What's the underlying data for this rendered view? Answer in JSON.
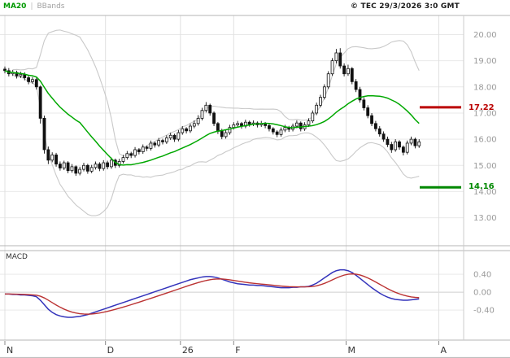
{
  "header": {
    "legend_ma20": "MA20",
    "legend_separator": "|",
    "legend_bbands": "BBands",
    "copyright": "© TEC 29/3/2026 3:0 GMT"
  },
  "indicator_panel": {
    "label": "MACD"
  },
  "levels": {
    "resistance": {
      "value": 17.22,
      "label": "17.22",
      "color": "#bb0000"
    },
    "support": {
      "value": 14.16,
      "label": "14.16",
      "color": "#008800"
    }
  },
  "colors": {
    "ma20": "#00a800",
    "bollinger": "#c9c9c9",
    "candle": "#111111",
    "macd_line": "#3333bb",
    "signal_line": "#bb3333",
    "axis_text": "#999999",
    "month_text": "#333333",
    "grid": "#e9e9e9",
    "border": "#b5b5b5"
  },
  "chart_data": {
    "type": "candlestick",
    "title": "",
    "legend": [
      "MA20",
      "BBands"
    ],
    "price_panel": {
      "ylim": [
        11.93,
        20.73
      ],
      "yticks": [
        20,
        19,
        18,
        17,
        16,
        15,
        14,
        13
      ],
      "overlays": [
        "MA20 = SMA(20) of closes",
        "Bollinger Bands = SMA20 ± 2·stdev(20)"
      ],
      "levels": [
        17.22,
        14.16
      ],
      "candles": [
        [
          18.68,
          18.78,
          18.52,
          18.62
        ],
        [
          18.62,
          18.72,
          18.4,
          18.5
        ],
        [
          18.5,
          18.65,
          18.42,
          18.55
        ],
        [
          18.55,
          18.62,
          18.32,
          18.42
        ],
        [
          18.42,
          18.58,
          18.34,
          18.48
        ],
        [
          18.48,
          18.56,
          18.25,
          18.35
        ],
        [
          18.35,
          18.45,
          18.1,
          18.2
        ],
        [
          18.2,
          18.38,
          18.12,
          18.28
        ],
        [
          18.28,
          18.35,
          17.9,
          18.0
        ],
        [
          18.0,
          18.05,
          16.6,
          16.8
        ],
        [
          16.8,
          16.9,
          15.45,
          15.6
        ],
        [
          15.6,
          15.72,
          15.05,
          15.2
        ],
        [
          15.2,
          15.5,
          15.12,
          15.4
        ],
        [
          15.4,
          15.48,
          14.95,
          15.05
        ],
        [
          15.05,
          15.15,
          14.8,
          14.9
        ],
        [
          14.9,
          15.18,
          14.82,
          15.1
        ],
        [
          15.1,
          15.16,
          14.7,
          14.8
        ],
        [
          14.8,
          15.05,
          14.72,
          14.95
        ],
        [
          14.95,
          15.0,
          14.6,
          14.7
        ],
        [
          14.7,
          14.95,
          14.62,
          14.85
        ],
        [
          14.85,
          15.1,
          14.77,
          15.0
        ],
        [
          15.0,
          15.06,
          14.68,
          14.78
        ],
        [
          14.78,
          15.02,
          14.7,
          14.92
        ],
        [
          14.92,
          15.15,
          14.84,
          15.05
        ],
        [
          15.05,
          15.12,
          14.78,
          14.88
        ],
        [
          14.88,
          15.2,
          14.8,
          15.1
        ],
        [
          15.1,
          15.18,
          14.85,
          14.95
        ],
        [
          14.95,
          15.3,
          14.87,
          15.2
        ],
        [
          15.2,
          15.26,
          14.9,
          15.0
        ],
        [
          15.0,
          15.25,
          14.92,
          15.15
        ],
        [
          15.15,
          15.4,
          15.07,
          15.3
        ],
        [
          15.3,
          15.55,
          15.22,
          15.45
        ],
        [
          15.45,
          15.52,
          15.28,
          15.38
        ],
        [
          15.38,
          15.7,
          15.3,
          15.6
        ],
        [
          15.6,
          15.66,
          15.42,
          15.52
        ],
        [
          15.52,
          15.8,
          15.44,
          15.7
        ],
        [
          15.7,
          15.76,
          15.55,
          15.65
        ],
        [
          15.65,
          15.95,
          15.57,
          15.85
        ],
        [
          15.85,
          15.91,
          15.68,
          15.78
        ],
        [
          15.78,
          16.05,
          15.7,
          15.95
        ],
        [
          15.95,
          16.02,
          15.8,
          15.9
        ],
        [
          15.9,
          16.15,
          15.82,
          16.05
        ],
        [
          16.05,
          16.25,
          15.97,
          16.15
        ],
        [
          16.15,
          16.21,
          15.9,
          16.0
        ],
        [
          16.0,
          16.35,
          15.92,
          16.25
        ],
        [
          16.25,
          16.5,
          16.17,
          16.4
        ],
        [
          16.4,
          16.46,
          16.22,
          16.32
        ],
        [
          16.32,
          16.6,
          16.24,
          16.5
        ],
        [
          16.5,
          16.72,
          16.42,
          16.6
        ],
        [
          16.6,
          16.92,
          16.52,
          16.8
        ],
        [
          16.8,
          17.2,
          16.72,
          17.1
        ],
        [
          17.1,
          17.42,
          17.02,
          17.3
        ],
        [
          17.3,
          17.36,
          16.9,
          17.0
        ],
        [
          17.0,
          17.06,
          16.5,
          16.6
        ],
        [
          16.6,
          16.66,
          16.2,
          16.3
        ],
        [
          16.3,
          16.4,
          16.0,
          16.1
        ],
        [
          16.1,
          16.35,
          16.02,
          16.25
        ],
        [
          16.25,
          16.55,
          16.17,
          16.45
        ],
        [
          16.45,
          16.65,
          16.37,
          16.55
        ],
        [
          16.55,
          16.7,
          16.47,
          16.6
        ],
        [
          16.6,
          16.66,
          16.4,
          16.5
        ],
        [
          16.5,
          16.75,
          16.42,
          16.65
        ],
        [
          16.65,
          16.71,
          16.48,
          16.58
        ],
        [
          16.58,
          16.72,
          16.5,
          16.62
        ],
        [
          16.62,
          16.68,
          16.45,
          16.55
        ],
        [
          16.55,
          16.7,
          16.47,
          16.6
        ],
        [
          16.6,
          16.66,
          16.42,
          16.52
        ],
        [
          16.52,
          16.58,
          16.3,
          16.4
        ],
        [
          16.4,
          16.46,
          16.18,
          16.28
        ],
        [
          16.28,
          16.34,
          16.08,
          16.18
        ],
        [
          16.18,
          16.45,
          16.1,
          16.35
        ],
        [
          16.35,
          16.55,
          16.27,
          16.45
        ],
        [
          16.45,
          16.51,
          16.28,
          16.38
        ],
        [
          16.38,
          16.6,
          16.3,
          16.5
        ],
        [
          16.5,
          16.72,
          16.42,
          16.62
        ],
        [
          16.62,
          16.68,
          16.3,
          16.4
        ],
        [
          16.4,
          16.65,
          16.32,
          16.55
        ],
        [
          16.55,
          16.8,
          16.47,
          16.7
        ],
        [
          16.7,
          17.1,
          16.62,
          17.0
        ],
        [
          17.0,
          17.4,
          16.92,
          17.3
        ],
        [
          17.3,
          17.7,
          17.22,
          17.6
        ],
        [
          17.6,
          18.1,
          17.52,
          18.0
        ],
        [
          18.0,
          18.6,
          17.92,
          18.5
        ],
        [
          18.5,
          19.1,
          18.42,
          19.0
        ],
        [
          19.0,
          19.45,
          18.9,
          19.3
        ],
        [
          19.3,
          19.48,
          18.7,
          18.8
        ],
        [
          18.8,
          18.9,
          18.4,
          18.5
        ],
        [
          18.5,
          18.85,
          18.42,
          18.7
        ],
        [
          18.7,
          18.76,
          18.1,
          18.2
        ],
        [
          18.2,
          18.3,
          17.8,
          17.9
        ],
        [
          17.9,
          18.0,
          17.4,
          17.5
        ],
        [
          17.5,
          17.6,
          17.1,
          17.2
        ],
        [
          17.2,
          17.3,
          16.8,
          16.9
        ],
        [
          16.9,
          17.0,
          16.5,
          16.6
        ],
        [
          16.6,
          16.7,
          16.3,
          16.4
        ],
        [
          16.4,
          16.5,
          16.1,
          16.2
        ],
        [
          16.2,
          16.3,
          15.9,
          16.0
        ],
        [
          16.0,
          16.1,
          15.7,
          15.8
        ],
        [
          15.8,
          15.9,
          15.48,
          15.6
        ],
        [
          15.6,
          16.0,
          15.52,
          15.9
        ],
        [
          15.9,
          15.96,
          15.6,
          15.7
        ],
        [
          15.7,
          15.76,
          15.38,
          15.5
        ],
        [
          15.5,
          15.95,
          15.42,
          15.85
        ],
        [
          15.85,
          16.1,
          15.77,
          16.0
        ],
        [
          16.0,
          16.06,
          15.65,
          15.75
        ],
        [
          15.75,
          16.0,
          15.67,
          15.9
        ]
      ]
    },
    "macd_panel": {
      "ylim": [
        -1.07,
        0.93
      ],
      "yticks": [
        0.4,
        0.0,
        -0.4
      ],
      "signal_derivation": "EMA9 of macd",
      "macd": [
        -0.04,
        -0.04,
        -0.05,
        -0.05,
        -0.06,
        -0.06,
        -0.07,
        -0.08,
        -0.1,
        -0.18,
        -0.28,
        -0.38,
        -0.45,
        -0.5,
        -0.53,
        -0.55,
        -0.56,
        -0.56,
        -0.55,
        -0.54,
        -0.52,
        -0.5,
        -0.47,
        -0.44,
        -0.41,
        -0.38,
        -0.35,
        -0.32,
        -0.29,
        -0.26,
        -0.23,
        -0.2,
        -0.17,
        -0.14,
        -0.11,
        -0.08,
        -0.05,
        -0.02,
        0.01,
        0.04,
        0.07,
        0.1,
        0.13,
        0.16,
        0.19,
        0.22,
        0.25,
        0.28,
        0.3,
        0.32,
        0.34,
        0.35,
        0.35,
        0.34,
        0.32,
        0.29,
        0.26,
        0.23,
        0.21,
        0.19,
        0.18,
        0.17,
        0.16,
        0.16,
        0.15,
        0.15,
        0.14,
        0.13,
        0.12,
        0.11,
        0.1,
        0.1,
        0.1,
        0.11,
        0.11,
        0.12,
        0.12,
        0.13,
        0.16,
        0.2,
        0.26,
        0.32,
        0.38,
        0.44,
        0.48,
        0.5,
        0.5,
        0.48,
        0.44,
        0.38,
        0.31,
        0.24,
        0.17,
        0.1,
        0.04,
        -0.02,
        -0.07,
        -0.11,
        -0.14,
        -0.16,
        -0.17,
        -0.18,
        -0.18,
        -0.17,
        -0.16,
        -0.15
      ]
    },
    "x_axis": {
      "ticks": [
        {
          "label": "N",
          "day": 0
        },
        {
          "label": "D",
          "day": 25.5
        },
        {
          "label": "26",
          "day": 44.5
        },
        {
          "label": "F",
          "day": 58
        },
        {
          "label": "M",
          "day": 86.5
        },
        {
          "label": "A",
          "day": 110
        }
      ]
    }
  }
}
